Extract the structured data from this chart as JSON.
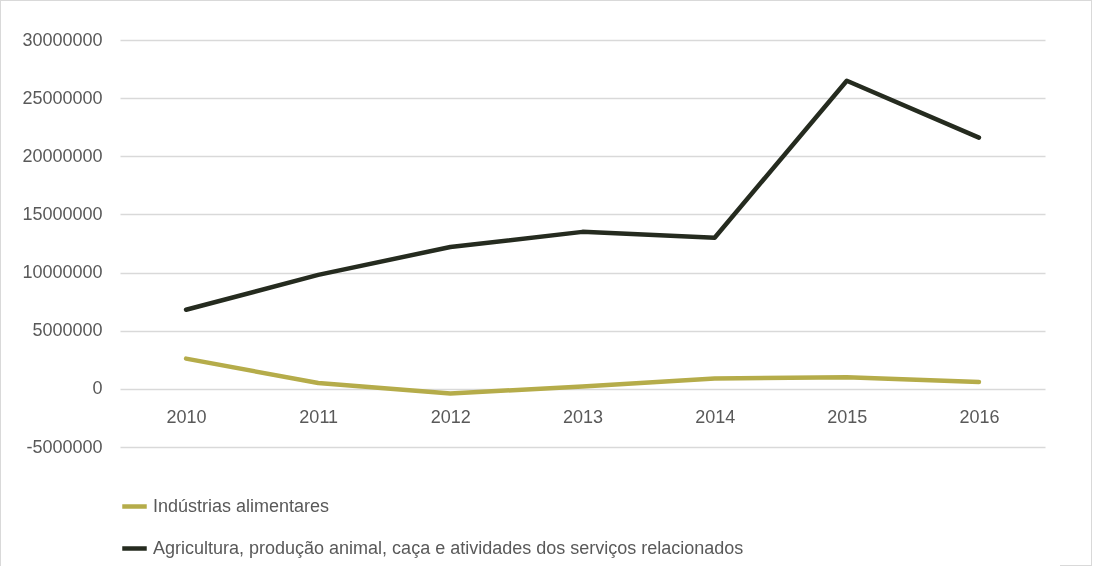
{
  "chart_data": {
    "type": "line",
    "categories": [
      "2010",
      "2011",
      "2012",
      "2013",
      "2014",
      "2015",
      "2016"
    ],
    "series": [
      {
        "name": "Indústrias alimentares",
        "color": "#b5ac4a",
        "values": [
          2600000,
          500000,
          -400000,
          200000,
          900000,
          1000000,
          600000
        ]
      },
      {
        "name": "Agricultura, produção animal, caça e atividades dos serviços relacionados",
        "color": "#252b1f",
        "values": [
          6800000,
          9800000,
          12200000,
          13500000,
          13000000,
          26500000,
          21600000
        ]
      }
    ],
    "ylim": [
      -5000000,
      30000000
    ],
    "yticks": [
      -5000000,
      0,
      5000000,
      10000000,
      15000000,
      20000000,
      25000000,
      30000000
    ],
    "grid": "y",
    "legend": "bottom",
    "marker": "none",
    "line_style": "solid"
  }
}
